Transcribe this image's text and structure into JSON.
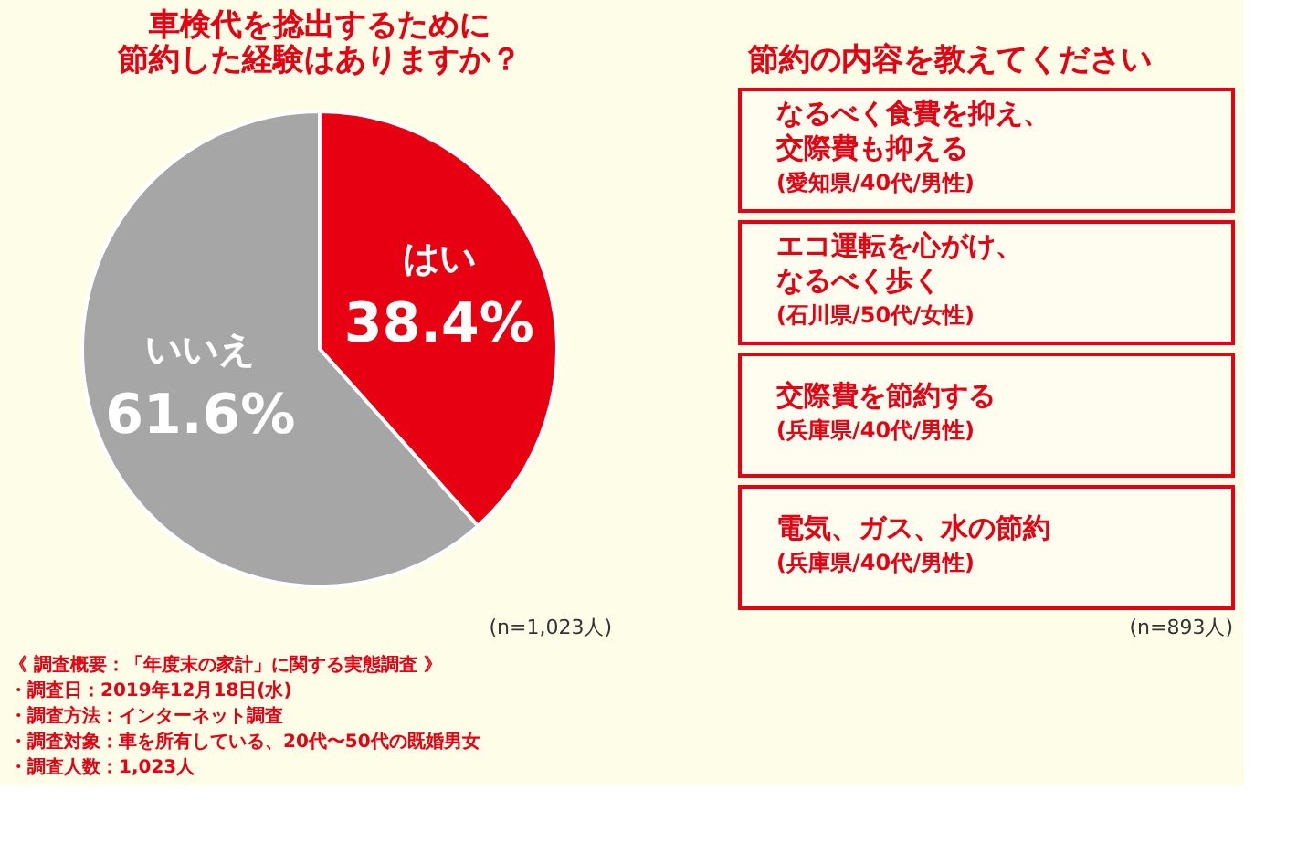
{
  "chart_data": [
    {
      "type": "pie",
      "title": [
        "車検代を捻出するために",
        "節約した経験はありますか？"
      ],
      "categories": [
        "はい",
        "いいえ"
      ],
      "values": [
        38.4,
        61.6
      ],
      "colors": [
        "#e60012",
        "#a6a6a6"
      ],
      "value_labels": [
        "38.4%",
        "61.6%"
      ],
      "annotations": [
        "(n=1,023人)",
        "《 調査概要：「年度末の家計」に関する実態調査 》",
        "・調査日：2019年12月18日(水)",
        "・調査方法：インターネット調査",
        "・調査対象：車を所有している、20代〜50代の既婚男女",
        "・調査人数：1,023人"
      ]
    },
    {
      "type": "other",
      "title": "節約の内容を教えてください",
      "annotations": [
        "なるべく食費を抑え、交際費も抑える",
        "(愛知県/40代/男性)",
        "エコ運転を心がけ、なるべく歩く",
        "(石川県/50代/女性)",
        "交際費を節約する",
        "(兵庫県/40代/男性)",
        "電気、ガス、水の節約",
        "(兵庫県/40代/男性)",
        "(n=893人)"
      ]
    }
  ]
}
